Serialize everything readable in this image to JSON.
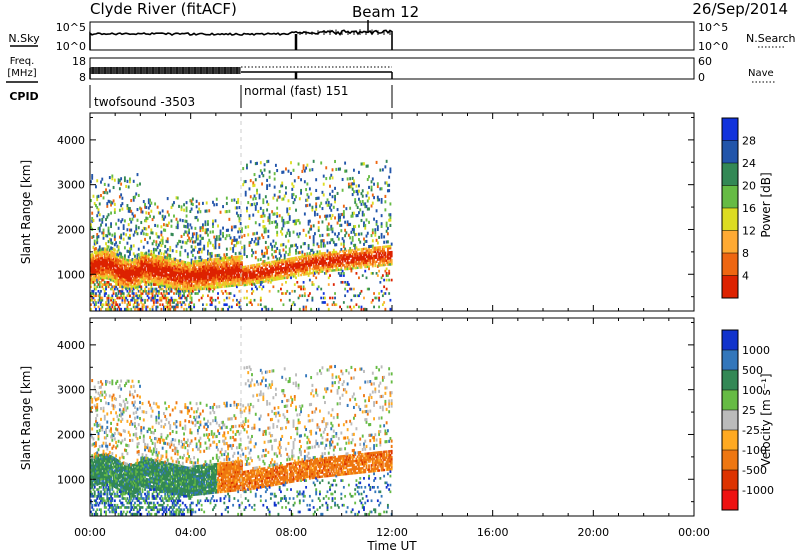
{
  "header": {
    "station": "Clyde River (fitACF)",
    "beam": "Beam 12",
    "date": "26/Sep/2014"
  },
  "chart_data": [
    {
      "type": "line",
      "name": "nsky-nsearch-panel",
      "left_label": "N.Sky",
      "right_label": "N.Search",
      "left_ticks": [
        "10^5",
        "10^0"
      ],
      "right_ticks": [
        "10^5",
        "10^0"
      ]
    },
    {
      "type": "line",
      "name": "freq-nave-panel",
      "left_label_lines": [
        "Freq.",
        "[MHz]"
      ],
      "right_label": "Nave",
      "left_ticks": [
        18,
        8
      ],
      "right_ticks": [
        60,
        0
      ]
    },
    {
      "type": "table",
      "name": "cpid-panel",
      "label": "CPID",
      "segments": [
        {
          "name": "twofsound -3503",
          "start_hour": 0,
          "end_hour": 6
        },
        {
          "name": "normal (fast) 151",
          "start_hour": 6,
          "end_hour": 12
        }
      ]
    },
    {
      "type": "heatmap",
      "name": "power-panel",
      "ylabel": "Slant Range [km]",
      "yticks": [
        1000,
        2000,
        3000,
        4000
      ],
      "ylim": [
        180,
        4600
      ],
      "xlim_hours": [
        0,
        24
      ],
      "colorbar": {
        "label": "Power [dB]",
        "ticks": [
          "4",
          "8",
          "12",
          "16",
          "20",
          "24",
          "28"
        ],
        "colors": [
          "#1133dd",
          "#2255aa",
          "#338855",
          "#66bb44",
          "#dddd22",
          "#ffaa33",
          "#ee6611",
          "#dd2200"
        ]
      },
      "data_extent_hours": [
        0,
        12
      ]
    },
    {
      "type": "heatmap",
      "name": "velocity-panel",
      "ylabel": "Slant Range [km]",
      "yticks": [
        1000,
        2000,
        3000,
        4000
      ],
      "ylim": [
        180,
        4600
      ],
      "xlim_hours": [
        0,
        24
      ],
      "colorbar": {
        "label": "Velocity [m s⁻¹]",
        "ticks": [
          "1000",
          "500",
          "100",
          "25",
          "-25",
          "-100",
          "-500",
          "-1000"
        ],
        "colors": [
          "#1133cc",
          "#3377bb",
          "#338855",
          "#66bb44",
          "#bbbbbb",
          "#ffaa22",
          "#ee7711",
          "#dd3300",
          "#ee1111"
        ]
      },
      "data_extent_hours": [
        0,
        12
      ]
    }
  ],
  "time_axis": {
    "xlabel": "Time UT",
    "ticks": [
      "00:00",
      "04:00",
      "08:00",
      "12:00",
      "16:00",
      "20:00",
      "00:00"
    ]
  }
}
